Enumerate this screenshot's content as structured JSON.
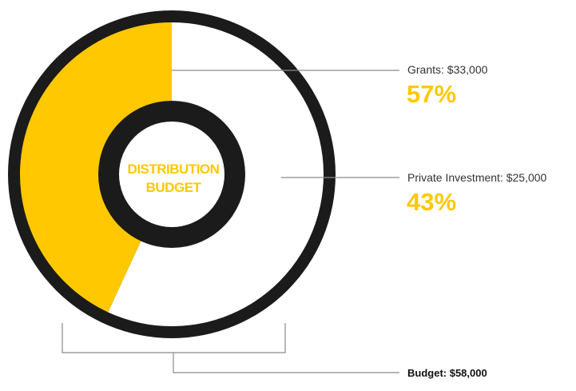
{
  "chart_data": {
    "type": "pie",
    "center_label_lines": [
      "DISTRIBUTION",
      "BUDGET"
    ],
    "slices": [
      {
        "label": "Grants: $33,000",
        "value": 33000,
        "percent_label": "57%",
        "color": "#ffffff"
      },
      {
        "label": "Private Investment: $25,000",
        "value": 25000,
        "percent_label": "43%",
        "color": "#ffc800"
      }
    ],
    "total_label": "Budget: $58,000",
    "total_value": 58000
  },
  "colors": {
    "ring": "#1b1b1b",
    "accent": "#ffc800",
    "background": "#ffffff",
    "leader": "#8a8a8a"
  }
}
